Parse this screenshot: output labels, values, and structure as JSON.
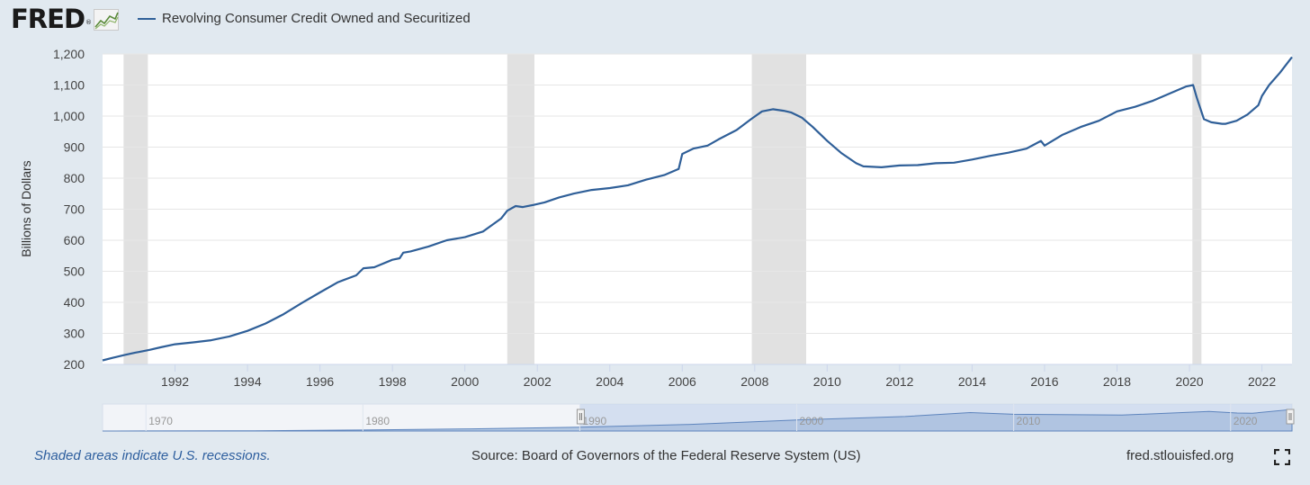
{
  "header": {
    "logo_text": "FRED",
    "logo_mark": "®",
    "logo_icon": "fred-graph-icon"
  },
  "colors": {
    "line": "#2f5f98",
    "recession": "#e1e1e1",
    "grid": "#e6e6e6",
    "nav_fill": "#a9bfde",
    "nav_selected": "#c7d6ec",
    "background": "#e1e9f0",
    "note": "#2d5e9e"
  },
  "chart_data": {
    "type": "line",
    "title": "",
    "xlabel": "",
    "ylabel": "Billions of Dollars",
    "xlim": [
      1990.0,
      2022.83
    ],
    "ylim": [
      200,
      1200
    ],
    "grid": true,
    "y_ticks": [
      200,
      300,
      400,
      500,
      600,
      700,
      800,
      900,
      1000,
      1100,
      1200
    ],
    "y_tick_labels": [
      "200",
      "300",
      "400",
      "500",
      "600",
      "700",
      "800",
      "900",
      "1,000",
      "1,100",
      "1,200"
    ],
    "x_ticks": [
      1992,
      1994,
      1996,
      1998,
      2000,
      2002,
      2004,
      2006,
      2008,
      2010,
      2012,
      2014,
      2016,
      2018,
      2020,
      2022
    ],
    "x_tick_labels": [
      "1992",
      "1994",
      "1996",
      "1998",
      "2000",
      "2002",
      "2004",
      "2006",
      "2008",
      "2010",
      "2012",
      "2014",
      "2016",
      "2018",
      "2020",
      "2022"
    ],
    "recessions": [
      [
        1990.58,
        1991.25
      ],
      [
        2001.17,
        2001.92
      ],
      [
        2007.92,
        2009.42
      ],
      [
        2020.08,
        2020.33
      ]
    ],
    "series": [
      {
        "name": "Revolving Consumer Credit Owned and Securitized",
        "x": [
          1990.0,
          1990.3,
          1990.6,
          1990.9,
          1991.0,
          1991.3,
          1991.6,
          1992.0,
          1992.5,
          1993.0,
          1993.5,
          1994.0,
          1994.5,
          1995.0,
          1995.5,
          1996.0,
          1996.5,
          1997.0,
          1997.2,
          1997.5,
          1998.0,
          1998.2,
          1998.3,
          1998.5,
          1999.0,
          1999.5,
          2000.0,
          2000.5,
          2001.0,
          2001.17,
          2001.4,
          2001.6,
          2001.9,
          2002.2,
          2002.6,
          2003.0,
          2003.5,
          2004.0,
          2004.5,
          2005.0,
          2005.5,
          2005.9,
          2006.0,
          2006.3,
          2006.7,
          2007.0,
          2007.5,
          2007.9,
          2008.2,
          2008.5,
          2008.8,
          2009.0,
          2009.3,
          2009.6,
          2010.0,
          2010.4,
          2010.8,
          2011.0,
          2011.5,
          2012.0,
          2012.5,
          2013.0,
          2013.5,
          2014.0,
          2014.5,
          2015.0,
          2015.5,
          2015.9,
          2016.0,
          2016.5,
          2017.0,
          2017.5,
          2018.0,
          2018.5,
          2019.0,
          2019.5,
          2019.9,
          2020.1,
          2020.2,
          2020.4,
          2020.6,
          2020.9,
          2021.0,
          2021.3,
          2021.6,
          2021.9,
          2022.0,
          2022.2,
          2022.5,
          2022.83
        ],
        "values": [
          213,
          222,
          230,
          238,
          240,
          247,
          255,
          265,
          271,
          278,
          290,
          308,
          332,
          362,
          398,
          432,
          465,
          487,
          510,
          513,
          537,
          542,
          560,
          564,
          580,
          600,
          610,
          628,
          670,
          695,
          710,
          707,
          714,
          722,
          738,
          750,
          762,
          768,
          777,
          795,
          810,
          830,
          878,
          895,
          905,
          925,
          955,
          990,
          1015,
          1022,
          1017,
          1012,
          995,
          965,
          920,
          880,
          848,
          838,
          835,
          841,
          842,
          848,
          850,
          860,
          872,
          882,
          895,
          920,
          905,
          940,
          965,
          985,
          1015,
          1030,
          1050,
          1075,
          1095,
          1100,
          1060,
          990,
          980,
          975,
          975,
          985,
          1005,
          1035,
          1065,
          1100,
          1140,
          1190
        ]
      }
    ]
  },
  "navigator": {
    "tick_labels": [
      "1970",
      "1980",
      "1990",
      "2000",
      "2010",
      "2020"
    ],
    "tick_years": [
      1970,
      1980,
      1990,
      2000,
      2010,
      2020
    ],
    "range_years": [
      1968.0,
      2022.83
    ],
    "selected_range": [
      1990.0,
      2022.83
    ],
    "history_x": [
      1968,
      1970,
      1975,
      1980,
      1985,
      1990,
      1995,
      2000,
      2005,
      2008,
      2010,
      2015,
      2019,
      2020.3,
      2021,
      2022.83
    ],
    "history_values": [
      2,
      5,
      15,
      55,
      120,
      213,
      362,
      610,
      800,
      1018,
      920,
      880,
      1080,
      990,
      975,
      1190
    ]
  },
  "footer": {
    "recession_note": "Shaded areas indicate U.S. recessions.",
    "source": "Source: Board of Governors of the Federal Reserve System (US)",
    "site": "fred.stlouisfed.org",
    "fullscreen_icon": "fullscreen-icon"
  }
}
